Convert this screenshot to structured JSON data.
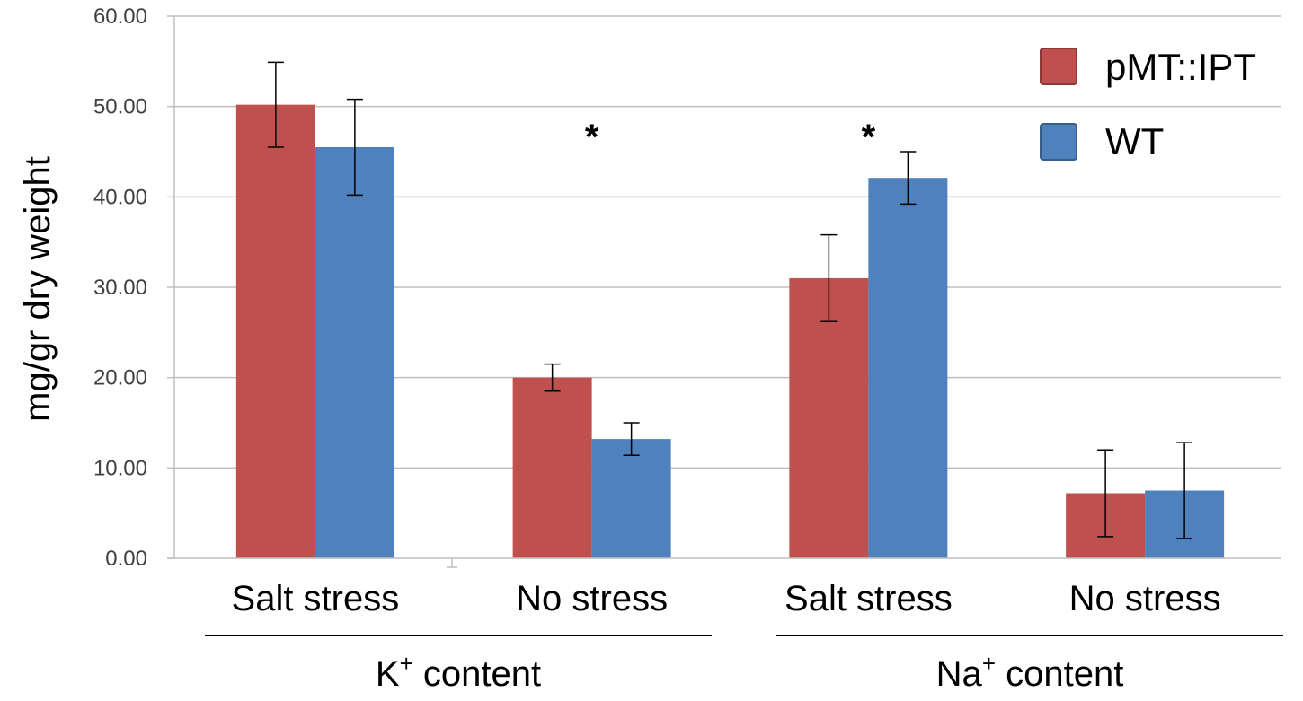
{
  "chart_data": {
    "type": "bar",
    "ylabel": "mg/gr dry weight",
    "ylim": [
      0,
      60
    ],
    "yticks": [
      "0.00",
      "10.00",
      "20.00",
      "30.00",
      "40.00",
      "50.00",
      "60.00"
    ],
    "ytick_values": [
      0,
      10,
      20,
      30,
      40,
      50,
      60
    ],
    "grid": true,
    "legend_position": "top-right",
    "groups": [
      {
        "label_main": "K",
        "label_sup": "+",
        "label_rest": " content",
        "categories": [
          "Salt stress",
          "No stress"
        ]
      },
      {
        "label_main": "Na",
        "label_sup": "+",
        "label_rest": " content",
        "categories": [
          "Salt stress",
          "No stress"
        ]
      }
    ],
    "categories": [
      "Salt stress",
      "No stress",
      "Salt stress",
      "No stress"
    ],
    "series": [
      {
        "name": "pMT::IPT",
        "color": "#C0504D",
        "values": [
          50.2,
          20.0,
          31.0,
          7.2
        ],
        "errors": [
          4.7,
          1.5,
          4.8,
          4.8
        ]
      },
      {
        "name": "WT",
        "color": "#4F81BD",
        "values": [
          45.5,
          13.2,
          42.1,
          7.5
        ],
        "errors": [
          5.3,
          1.8,
          2.9,
          5.3
        ]
      }
    ],
    "annotations": [
      {
        "text": "*",
        "category_index": 1
      },
      {
        "text": "*",
        "category_index": 2
      }
    ]
  }
}
